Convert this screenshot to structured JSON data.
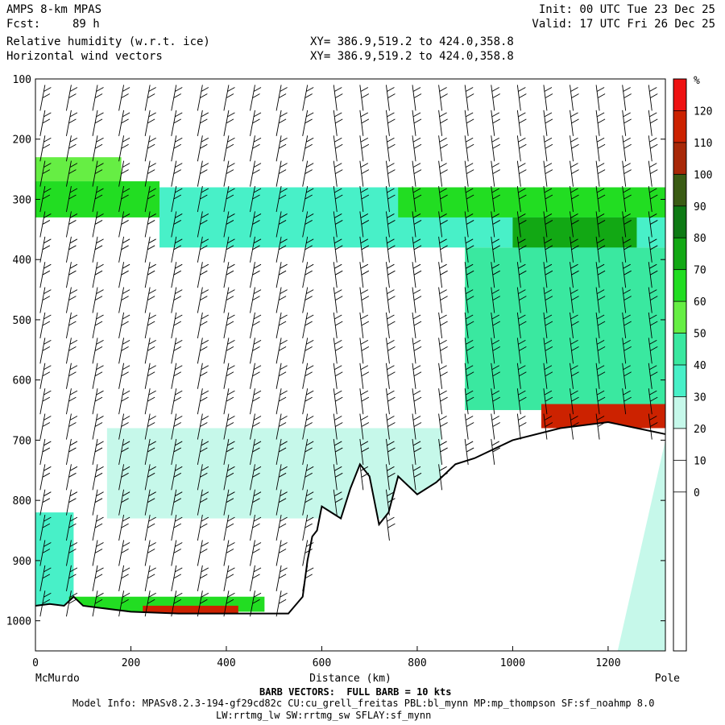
{
  "header": {
    "model": "AMPS 8-km MPAS",
    "fcst_label": "Fcst:",
    "fcst_value": "89 h",
    "field1": "Relative humidity (w.r.t. ice)",
    "field2": "Horizontal wind vectors",
    "init": "Init: 00 UTC Tue 23 Dec 25",
    "valid": "Valid: 17 UTC Fri 26 Dec 25",
    "xy1": "XY= 386.9,519.2 to 424.0,358.8",
    "xy2": "XY= 386.9,519.2 to 424.0,358.8"
  },
  "footer": {
    "barb_note": "BARB VECTORS:  FULL BARB = 10 kts",
    "model_info": "Model Info: MPASv8.2.3-194-gf29cd82c CU:cu_grell_freitas PBL:bl_mynn MP:mp_thompson SF:sf_noahmp 8.0",
    "model_info2": "LW:rrtmg_lw SW:rrtmg_sw SFLAY:sf_mynn"
  },
  "chart_data": {
    "type": "heatmap",
    "title": "Relative humidity (w.r.t. ice)",
    "xlabel": "Distance (km)",
    "ylabel": "",
    "x_start_label": "McMurdo",
    "x_end_label": "Pole",
    "xlim": [
      0,
      1320
    ],
    "ylim": [
      100,
      1050
    ],
    "x_ticks": [
      0,
      200,
      400,
      600,
      800,
      1000,
      1200
    ],
    "y_ticks": [
      100,
      200,
      300,
      400,
      500,
      600,
      700,
      800,
      900,
      1000
    ],
    "colorbar": {
      "unit": "%",
      "labels": [
        120,
        110,
        100,
        90,
        80,
        70,
        60,
        50,
        40,
        30,
        20,
        10,
        0
      ],
      "colors": [
        "#ee1111",
        "#cc2200",
        "#a82808",
        "#3a5c14",
        "#0e7a14",
        "#12a814",
        "#22dd22",
        "#66ee44",
        "#3ae8a0",
        "#48f0c8",
        "#c6f8ea",
        "#ffffff",
        "#ffffff",
        "#ffffff",
        "#ffffff",
        "#ffffff",
        "#ffffff",
        "#ffffff"
      ]
    },
    "terrain_profile": {
      "x_km": [
        0,
        30,
        60,
        80,
        100,
        200,
        300,
        400,
        530,
        560,
        570,
        580,
        590,
        600,
        620,
        640,
        660,
        680,
        700,
        720,
        740,
        760,
        800,
        840,
        880,
        920,
        1000,
        1100,
        1200,
        1260,
        1320
      ],
      "p_hPa": [
        975,
        972,
        975,
        960,
        975,
        985,
        988,
        988,
        988,
        960,
        900,
        860,
        850,
        810,
        820,
        830,
        780,
        740,
        760,
        840,
        820,
        760,
        790,
        770,
        740,
        730,
        700,
        680,
        670,
        680,
        690
      ]
    },
    "rh_layers": [
      {
        "p_top": 230,
        "p_bot": 270,
        "x0": 0,
        "x1": 180,
        "rh": 60
      },
      {
        "p_top": 270,
        "p_bot": 330,
        "x0": 0,
        "x1": 260,
        "rh": 70
      },
      {
        "p_top": 280,
        "p_bot": 380,
        "x0": 260,
        "x1": 1320,
        "rh": 45
      },
      {
        "p_top": 280,
        "p_bot": 330,
        "x0": 760,
        "x1": 1320,
        "rh": 70
      },
      {
        "p_top": 330,
        "p_bot": 450,
        "x0": 1000,
        "x1": 1260,
        "rh": 80
      },
      {
        "p_top": 380,
        "p_bot": 650,
        "x0": 900,
        "x1": 1320,
        "rh": 50
      },
      {
        "p_top": 640,
        "p_bot": 680,
        "x0": 1060,
        "x1": 1320,
        "rh": 120
      },
      {
        "p_top": 680,
        "p_bot": 830,
        "x0": 150,
        "x1": 850,
        "rh": 35
      },
      {
        "p_top": 820,
        "p_bot": 980,
        "x0": 0,
        "x1": 80,
        "rh": 45
      },
      {
        "p_top": 960,
        "p_bot": 985,
        "x0": 70,
        "x1": 480,
        "rh": 70
      },
      {
        "p_top": 975,
        "p_bot": 990,
        "x0": 225,
        "x1": 425,
        "rh": 110
      }
    ]
  }
}
